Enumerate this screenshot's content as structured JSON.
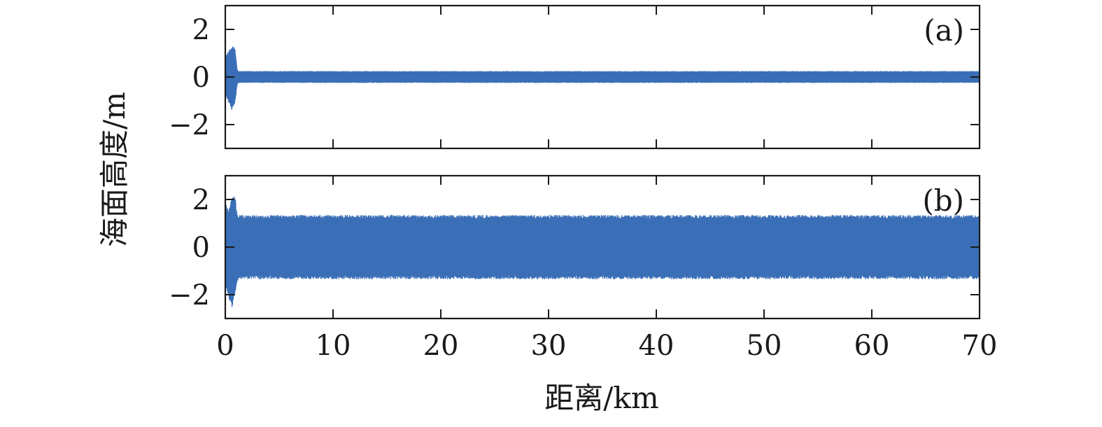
{
  "chart_data": [
    {
      "type": "line",
      "panel_label": "(a)",
      "xlim": [
        0,
        70
      ],
      "ylim": [
        -3,
        3
      ],
      "x_ticks": [
        0,
        10,
        20,
        30,
        40,
        50,
        60,
        70
      ],
      "y_ticks": [
        -2,
        0,
        2
      ],
      "y_tick_labels": [
        "−2",
        "0",
        "2"
      ],
      "x_ticklabels_shown": false,
      "color": "#3a6fb7",
      "series": [
        {
          "x": [
            0,
            0.3,
            0.6,
            0.9,
            1.1,
            1.2,
            10,
            20,
            30,
            40,
            50,
            60,
            70
          ],
          "y_max": [
            0.85,
            1.1,
            1.3,
            1.25,
            0.35,
            0.25,
            0.25,
            0.25,
            0.25,
            0.25,
            0.25,
            0.25,
            0.25
          ],
          "y_min": [
            -0.75,
            -1.05,
            -1.4,
            -1.1,
            -0.35,
            -0.25,
            -0.25,
            -0.25,
            -0.25,
            -0.25,
            -0.25,
            -0.25,
            -0.25
          ]
        }
      ]
    },
    {
      "type": "line",
      "panel_label": "(b)",
      "xlim": [
        0,
        70
      ],
      "ylim": [
        -3,
        3
      ],
      "x_ticks": [
        0,
        10,
        20,
        30,
        40,
        50,
        60,
        70
      ],
      "x_tick_labels": [
        "0",
        "10",
        "20",
        "30",
        "40",
        "50",
        "60",
        "70"
      ],
      "y_ticks": [
        -2,
        0,
        2
      ],
      "y_tick_labels": [
        "−2",
        "0",
        "2"
      ],
      "xlabel": "距离/km",
      "color": "#3a6fb7",
      "series": [
        {
          "x": [
            0,
            0.3,
            0.6,
            0.9,
            1.1,
            1.3,
            10,
            20,
            30,
            40,
            50,
            60,
            70
          ],
          "y_max": [
            1.9,
            1.6,
            2.1,
            2.2,
            1.4,
            1.35,
            1.35,
            1.35,
            1.35,
            1.35,
            1.35,
            1.35,
            1.35
          ],
          "y_min": [
            -1.6,
            -2.1,
            -2.6,
            -2.0,
            -1.45,
            -1.35,
            -1.35,
            -1.35,
            -1.35,
            -1.35,
            -1.35,
            -1.35,
            -1.35
          ]
        }
      ]
    }
  ],
  "ylabel": "海面高度/m"
}
